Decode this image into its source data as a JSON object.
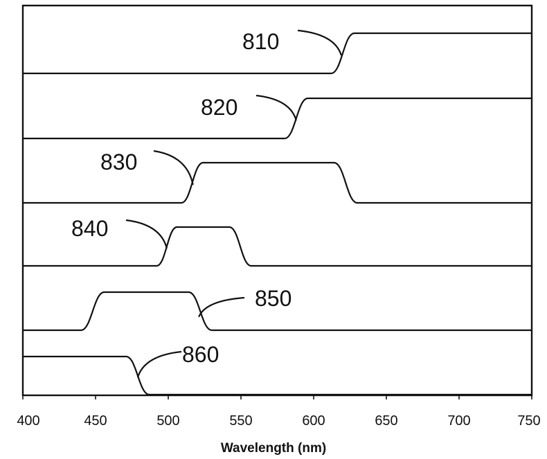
{
  "chart_data": {
    "type": "line",
    "title": "",
    "xlabel": "Wavelength (nm)",
    "ylabel": "",
    "xlim": [
      400,
      750
    ],
    "x_ticks": [
      "400",
      "450",
      "500",
      "550",
      "600",
      "650",
      "700",
      "750"
    ],
    "grid": false,
    "series": [
      {
        "name": "810",
        "points": [
          [
            400,
            0
          ],
          [
            612,
            0
          ],
          [
            628,
            1
          ],
          [
            750,
            1
          ]
        ]
      },
      {
        "name": "820",
        "points": [
          [
            400,
            0
          ],
          [
            580,
            0
          ],
          [
            596,
            1
          ],
          [
            750,
            1
          ]
        ]
      },
      {
        "name": "830",
        "points": [
          [
            400,
            0
          ],
          [
            509,
            0
          ],
          [
            524,
            1
          ],
          [
            614,
            1
          ],
          [
            630,
            0
          ],
          [
            750,
            0
          ]
        ]
      },
      {
        "name": "840",
        "points": [
          [
            400,
            0
          ],
          [
            492,
            0
          ],
          [
            506,
            1
          ],
          [
            542,
            1
          ],
          [
            557,
            0
          ],
          [
            750,
            0
          ]
        ]
      },
      {
        "name": "850",
        "points": [
          [
            400,
            0
          ],
          [
            440,
            0
          ],
          [
            456,
            1
          ],
          [
            514,
            1
          ],
          [
            530,
            0
          ],
          [
            750,
            0
          ]
        ]
      },
      {
        "name": "860",
        "points": [
          [
            400,
            1
          ],
          [
            471,
            1
          ],
          [
            487,
            0
          ],
          [
            750,
            0
          ]
        ]
      }
    ],
    "annotations": [
      {
        "label": "810",
        "target": [
          619,
          0.45
        ]
      },
      {
        "label": "820",
        "target": [
          588,
          0.45
        ]
      },
      {
        "label": "830",
        "target": [
          517,
          0.45
        ]
      },
      {
        "label": "840",
        "target": [
          499,
          0.45
        ]
      },
      {
        "label": "850",
        "target": [
          521,
          0.35
        ]
      },
      {
        "label": "860",
        "target": [
          479,
          0.45
        ]
      }
    ]
  }
}
